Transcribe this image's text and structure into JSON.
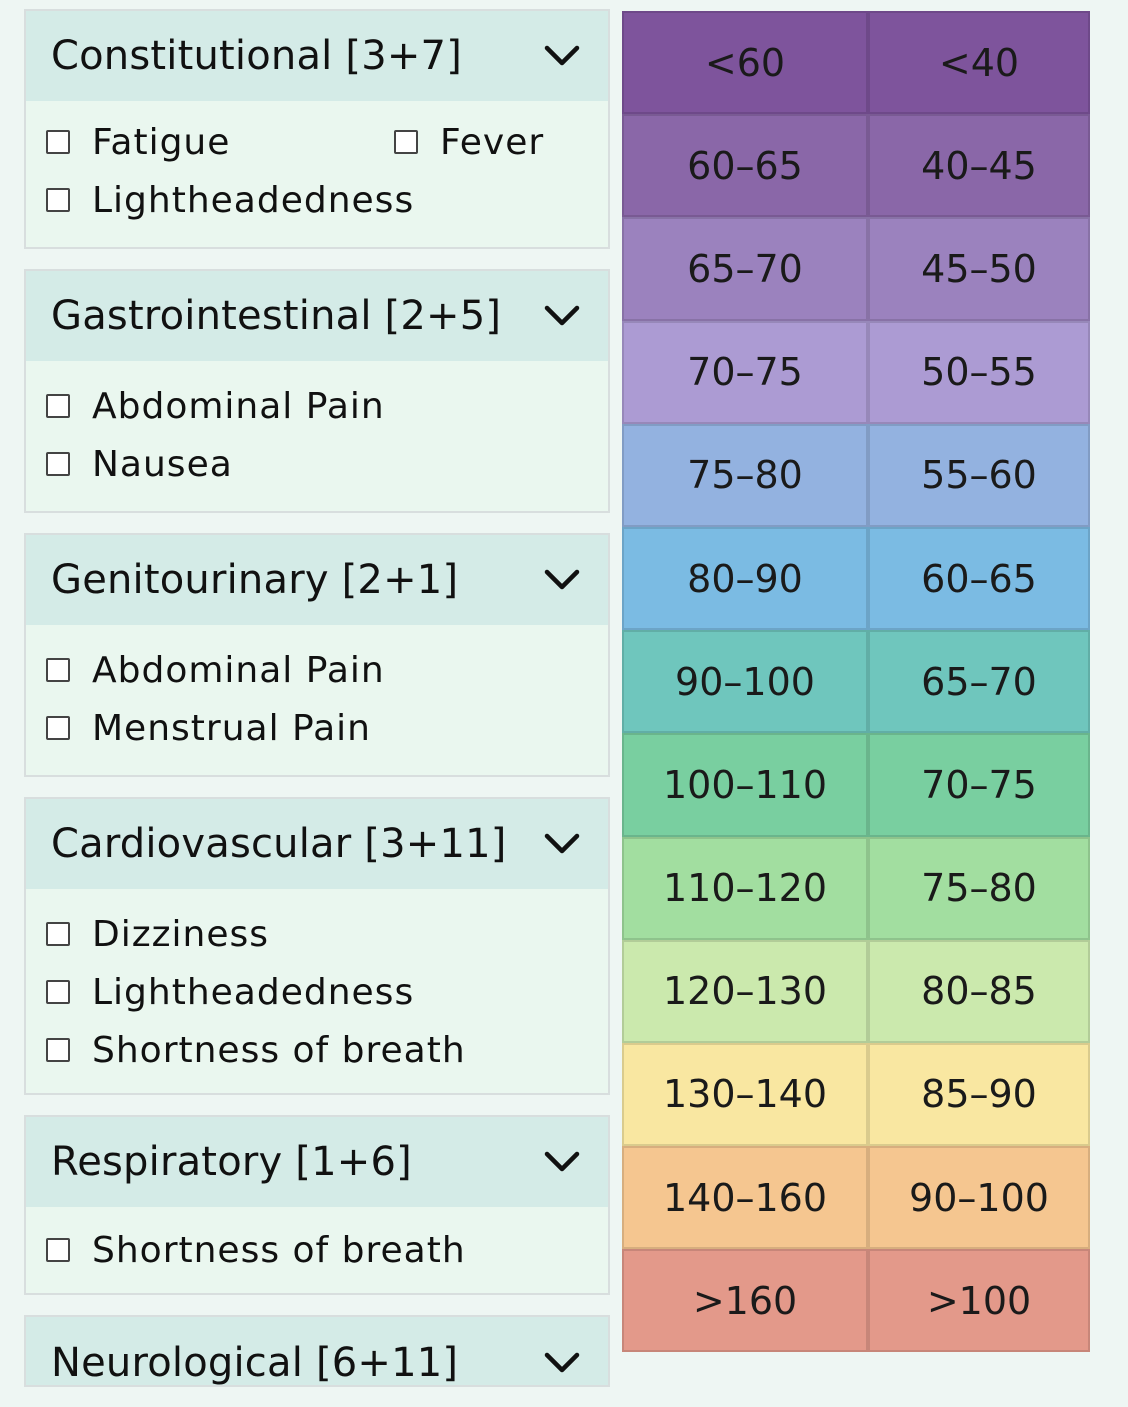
{
  "panels": [
    {
      "title": "Constitutional [3+7]",
      "items": [
        "Fatigue",
        "Fever",
        "Lightheadedness"
      ]
    },
    {
      "title": "Gastrointestinal [2+5]",
      "items": [
        "Abdominal Pain",
        "Nausea"
      ]
    },
    {
      "title": "Genitourinary [2+1]",
      "items": [
        "Abdominal Pain",
        "Menstrual Pain"
      ]
    },
    {
      "title": "Cardiovascular [3+11]",
      "items": [
        "Dizziness",
        "Lightheadedness",
        "Shortness of breath"
      ]
    },
    {
      "title": "Respiratory [1+6]",
      "items": [
        "Shortness of breath"
      ]
    },
    {
      "title": "Neurological [6+11]",
      "items": []
    }
  ],
  "scale": {
    "rows": [
      {
        "a": "<60",
        "b": "<40",
        "color": "#7e549c"
      },
      {
        "a": "60–65",
        "b": "40–45",
        "color": "#8a67a8"
      },
      {
        "a": "65–70",
        "b": "45–50",
        "color": "#9b82be"
      },
      {
        "a": "70–75",
        "b": "50–55",
        "color": "#ac9bd3"
      },
      {
        "a": "75–80",
        "b": "55–60",
        "color": "#93b2e0"
      },
      {
        "a": "80–90",
        "b": "60–65",
        "color": "#7bbbe3"
      },
      {
        "a": "90–100",
        "b": "65–70",
        "color": "#6fc6bd"
      },
      {
        "a": "100–110",
        "b": "70–75",
        "color": "#79cfa0"
      },
      {
        "a": "110–120",
        "b": "75–80",
        "color": "#a2dea0"
      },
      {
        "a": "120–130",
        "b": "80–85",
        "color": "#cbe9ad"
      },
      {
        "a": "130–140",
        "b": "85–90",
        "color": "#f9e7a1"
      },
      {
        "a": "140–160",
        "b": "90–100",
        "color": "#f5c690"
      },
      {
        "a": ">160",
        "b": ">100",
        "color": "#e3998a"
      }
    ]
  },
  "icons": {
    "chevron": "chevron-down-icon",
    "checkbox": "checkbox-icon"
  }
}
